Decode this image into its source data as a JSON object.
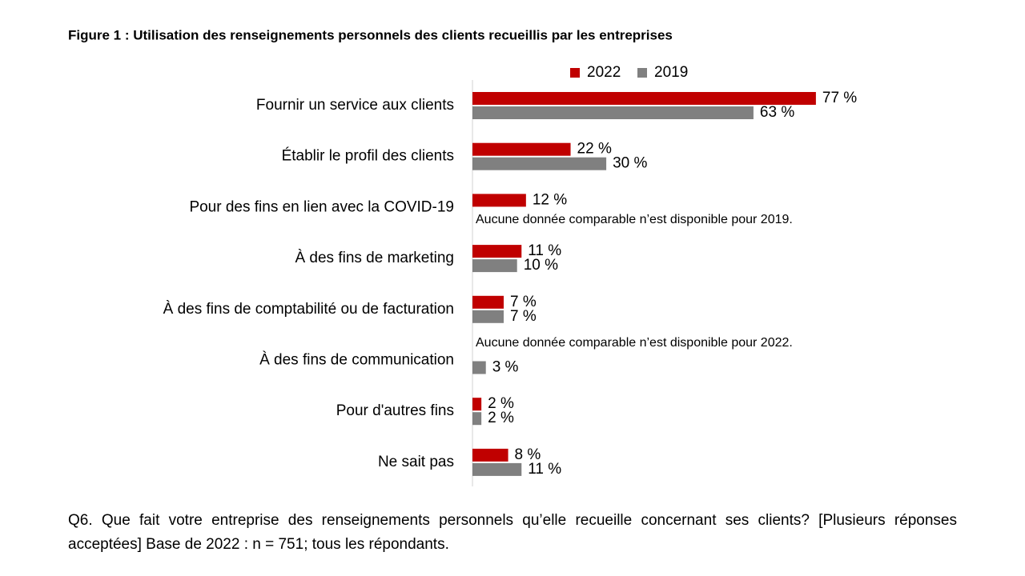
{
  "chart_data": {
    "type": "bar",
    "orientation": "horizontal",
    "title": "Figure 1 : Utilisation des renseignements personnels des clients recueillis par les entreprises",
    "categories": [
      "Fournir un service aux clients",
      "Établir le profil des clients",
      "Pour des fins en lien avec la COVID-19",
      "À des fins de marketing",
      "À des fins de comptabilité ou de facturation",
      "À des fins de communication",
      "Pour d'autres fins",
      "Ne sait pas"
    ],
    "series": [
      {
        "name": "2022",
        "color": "#c00000",
        "values": [
          77,
          22,
          12,
          11,
          7,
          null,
          2,
          8
        ],
        "value_labels": [
          "77 %",
          "22 %",
          "12 %",
          "11 %",
          "7 %",
          null,
          "2 %",
          "8 %"
        ]
      },
      {
        "name": "2019",
        "color": "#808080",
        "values": [
          63,
          30,
          null,
          10,
          7,
          3,
          2,
          11
        ],
        "value_labels": [
          "63 %",
          "30 %",
          null,
          "10 %",
          "7 %",
          "3 %",
          "2 %",
          "11 %"
        ]
      }
    ],
    "annotations": [
      "Aucune donnée comparable n’est disponible pour 2019.",
      "Aucune donnée comparable n’est disponible pour 2022."
    ],
    "footnote": "Q6. Que fait votre entreprise des renseignements personnels qu’elle recueille concernant ses clients? [Plusieurs réponses acceptées] Base de 2022 : n = 751; tous les répondants."
  }
}
